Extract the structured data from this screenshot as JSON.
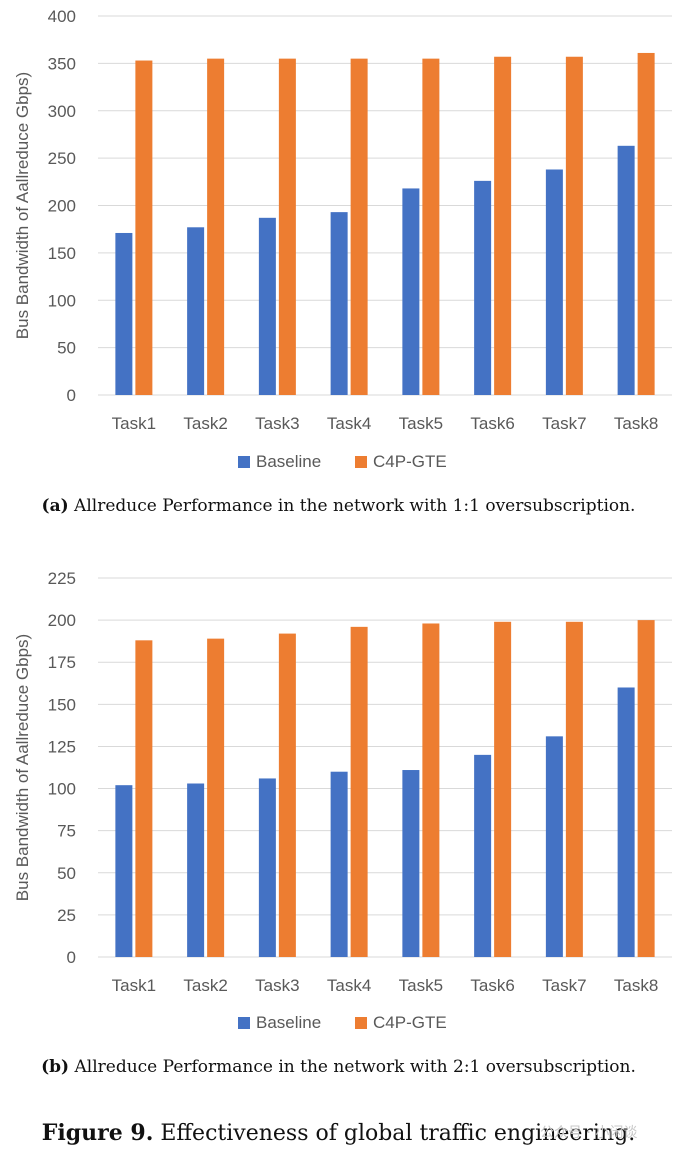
{
  "chart_data": [
    {
      "type": "bar",
      "categories": [
        "Task1",
        "Task2",
        "Task3",
        "Task4",
        "Task5",
        "Task6",
        "Task7",
        "Task8"
      ],
      "series": [
        {
          "name": "Baseline",
          "color": "#4472c4",
          "values": [
            171,
            177,
            187,
            193,
            218,
            226,
            238,
            263
          ]
        },
        {
          "name": "C4P-GTE",
          "color": "#ed7d31",
          "values": [
            353,
            355,
            355,
            355,
            355,
            357,
            357,
            361
          ]
        }
      ],
      "title": "",
      "xlabel": "",
      "ylabel": "Bus Bandwidth of Aallreduce Gbps)",
      "ylim": [
        0,
        400
      ],
      "yticks": [
        0,
        50,
        100,
        150,
        200,
        250,
        300,
        350,
        400
      ],
      "grid": true,
      "legend": "bottom"
    },
    {
      "type": "bar",
      "categories": [
        "Task1",
        "Task2",
        "Task3",
        "Task4",
        "Task5",
        "Task6",
        "Task7",
        "Task8"
      ],
      "series": [
        {
          "name": "Baseline",
          "color": "#4472c4",
          "values": [
            102,
            103,
            106,
            110,
            111,
            120,
            131,
            160
          ]
        },
        {
          "name": "C4P-GTE",
          "color": "#ed7d31",
          "values": [
            188,
            189,
            192,
            196,
            198,
            199,
            199,
            200
          ]
        }
      ],
      "title": "",
      "xlabel": "",
      "ylabel": "Bus Bandwidth of Aallreduce Gbps)",
      "ylim": [
        0,
        225
      ],
      "yticks": [
        0,
        25,
        50,
        75,
        100,
        125,
        150,
        175,
        200,
        225
      ],
      "grid": true,
      "legend": "bottom"
    }
  ],
  "captions": {
    "a_label": "(a)",
    "a_text": "Allreduce Performance in the network with 1:1 oversubscription.",
    "b_label": "(b)",
    "b_text": "Allreduce Performance in the network with 2:1 oversubscription.",
    "figure_label": "Figure 9.",
    "figure_text": "Effectiveness of global traffic engineering."
  },
  "watermark": "公众号 · 小闲谈"
}
